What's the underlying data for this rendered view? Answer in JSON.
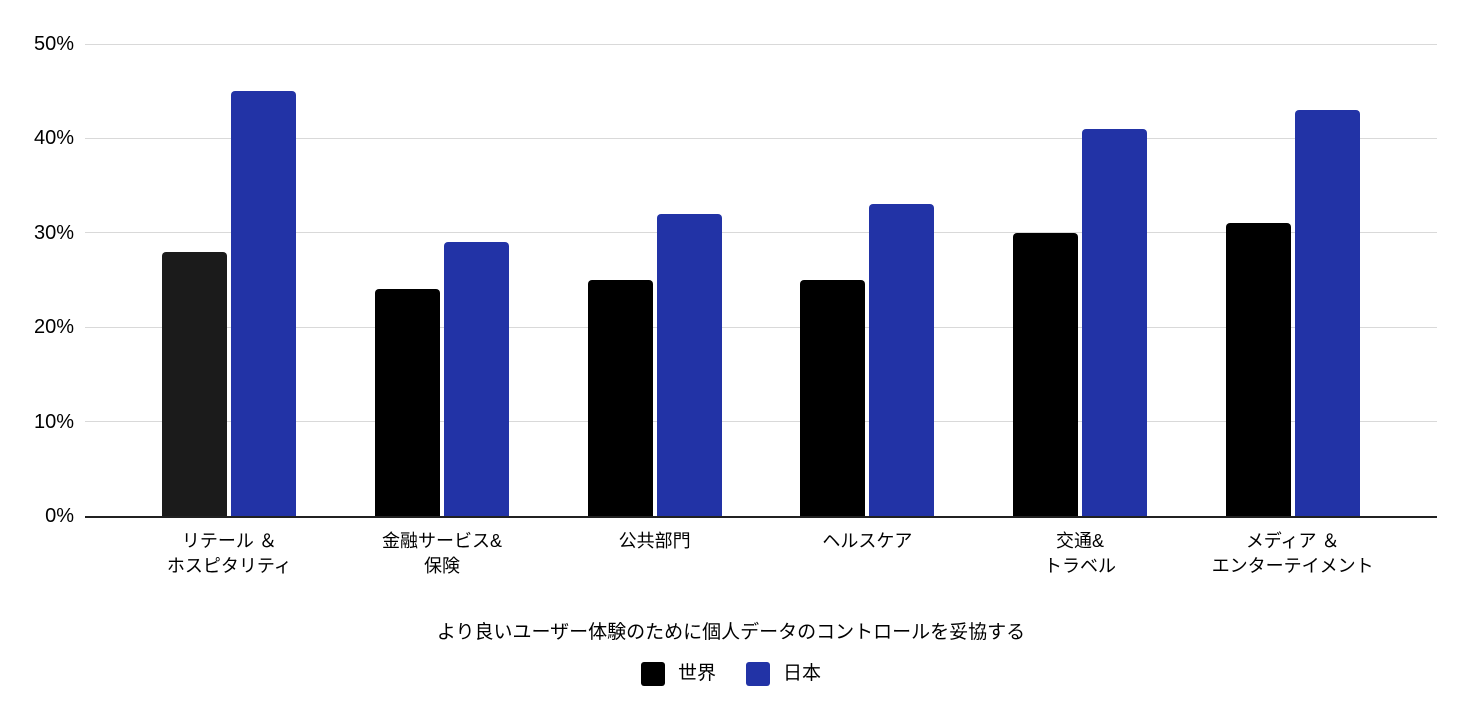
{
  "chart_data": {
    "type": "bar",
    "title": "",
    "xlabel": "より良いユーザー体験のために個人データのコントロールを妥協する",
    "ylabel": "",
    "categories": [
      [
        "リテール ＆",
        "ホスピタリティ"
      ],
      [
        "金融サービス&",
        "保険"
      ],
      [
        "公共部門"
      ],
      [
        "ヘルスケア"
      ],
      [
        "交通&",
        "トラベル"
      ],
      [
        "メディア ＆",
        "エンターテイメント"
      ]
    ],
    "series": [
      {
        "name": "世界",
        "color": "#000000",
        "point_colors": [
          "#1B1B1B",
          "#000000",
          "#000000",
          "#000000",
          "#000000",
          "#000000"
        ],
        "values": [
          28,
          24,
          25,
          25,
          30,
          31
        ]
      },
      {
        "name": "日本",
        "color": "#2233A6",
        "point_colors": [
          "#2233A6",
          "#2233A6",
          "#2233A6",
          "#2233A6",
          "#2233A6",
          "#2233A6"
        ],
        "values": [
          45,
          29,
          32,
          33,
          41,
          43
        ]
      }
    ],
    "ylim": [
      0,
      50
    ],
    "yticks": [
      0,
      10,
      20,
      30,
      40,
      50
    ],
    "ytick_suffix": "%",
    "grid": true,
    "legend_position": "bottom"
  },
  "colors": {
    "background": "#FFFFFF",
    "gridline": "#D9D9D9",
    "axis_line": "#212121",
    "text": "#000000"
  }
}
